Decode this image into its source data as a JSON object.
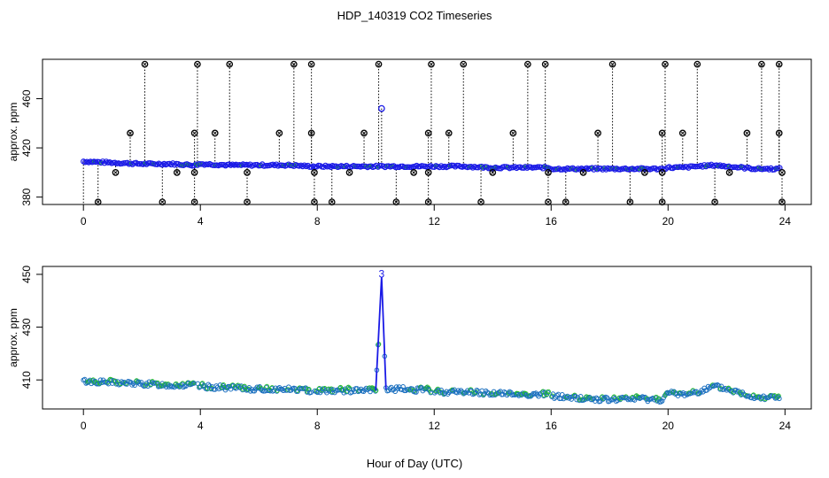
{
  "title": "HDP_140319  CO2 Timeseries",
  "xlabel": "Hour of Day (UTC)",
  "chart_data": [
    {
      "type": "scatter",
      "panel": "top",
      "ylabel": "approx. ppm",
      "xlim": [
        -1.4,
        24.9
      ],
      "ylim": [
        374,
        492
      ],
      "x_ticks": [
        0,
        4,
        8,
        12,
        16,
        20,
        24
      ],
      "y_ticks": [
        380,
        420,
        460
      ],
      "colors": {
        "flags": "#000000",
        "series": "#1a1ae6",
        "inner": "#22c022",
        "stems": "#000000"
      },
      "baseline": [
        {
          "x": 0.0,
          "y": 409
        },
        {
          "x": 1.0,
          "y": 408
        },
        {
          "x": 2.0,
          "y": 407
        },
        {
          "x": 3.0,
          "y": 407
        },
        {
          "x": 3.8,
          "y": 406
        },
        {
          "x": 4.0,
          "y": 407
        },
        {
          "x": 5.0,
          "y": 406
        },
        {
          "x": 6.0,
          "y": 406
        },
        {
          "x": 7.0,
          "y": 406
        },
        {
          "x": 7.8,
          "y": 405
        },
        {
          "x": 8.0,
          "y": 405
        },
        {
          "x": 9.0,
          "y": 405
        },
        {
          "x": 10.0,
          "y": 405
        },
        {
          "x": 11.0,
          "y": 405
        },
        {
          "x": 11.9,
          "y": 405
        },
        {
          "x": 12.0,
          "y": 405
        },
        {
          "x": 13.0,
          "y": 405
        },
        {
          "x": 14.0,
          "y": 404
        },
        {
          "x": 15.0,
          "y": 404
        },
        {
          "x": 15.9,
          "y": 404
        },
        {
          "x": 16.0,
          "y": 403
        },
        {
          "x": 17.0,
          "y": 403
        },
        {
          "x": 18.0,
          "y": 403
        },
        {
          "x": 19.0,
          "y": 403
        },
        {
          "x": 19.8,
          "y": 403
        },
        {
          "x": 20.0,
          "y": 404
        },
        {
          "x": 20.5,
          "y": 404
        },
        {
          "x": 21.0,
          "y": 405
        },
        {
          "x": 21.6,
          "y": 406
        },
        {
          "x": 22.0,
          "y": 405
        },
        {
          "x": 23.0,
          "y": 403
        },
        {
          "x": 23.8,
          "y": 403
        }
      ],
      "outlier": {
        "x": 10.2,
        "y": 452
      },
      "flags_high": [
        2.1,
        3.9,
        5.0,
        7.2,
        7.8,
        10.1,
        11.9,
        13.0,
        15.2,
        15.8,
        18.1,
        19.9,
        21.0,
        23.2,
        23.8
      ],
      "flags_high_y": 488,
      "flags_mid": [
        1.6,
        3.8,
        4.5,
        6.7,
        7.8,
        9.6,
        11.8,
        12.5,
        14.7,
        17.6,
        19.8,
        20.5,
        22.7,
        23.8
      ],
      "flags_mid_y": 432,
      "flags_low": [
        1.1,
        3.2,
        3.8,
        5.6,
        7.9,
        9.1,
        11.3,
        11.8,
        14.0,
        15.9,
        17.1,
        19.2,
        19.8,
        22.1,
        23.9
      ],
      "flags_low_y": 400,
      "flags_bottom": [
        0.5,
        2.7,
        3.8,
        5.6,
        7.9,
        8.5,
        10.7,
        11.8,
        13.6,
        15.9,
        16.5,
        18.7,
        19.8,
        21.6,
        23.9
      ],
      "flags_bottom_y": 376
    },
    {
      "type": "line",
      "panel": "bottom",
      "ylabel": "approx. ppm",
      "xlim": [
        -1.4,
        24.9
      ],
      "ylim": [
        399,
        453
      ],
      "x_ticks": [
        0,
        4,
        8,
        12,
        16,
        20,
        24
      ],
      "y_ticks": [
        410,
        430,
        450
      ],
      "colors": {
        "line": "#1a1ae6",
        "points": "#1a6fbf",
        "inner": "#22c022"
      },
      "series": [
        {
          "x": 0.0,
          "y": 409.5
        },
        {
          "x": 1.0,
          "y": 409.0
        },
        {
          "x": 2.0,
          "y": 408.5
        },
        {
          "x": 3.0,
          "y": 408.0
        },
        {
          "x": 3.8,
          "y": 408.0
        },
        {
          "x": 4.0,
          "y": 407.5
        },
        {
          "x": 5.0,
          "y": 407.0
        },
        {
          "x": 6.0,
          "y": 406.5
        },
        {
          "x": 7.0,
          "y": 406.5
        },
        {
          "x": 7.8,
          "y": 406.0
        },
        {
          "x": 8.0,
          "y": 406.0
        },
        {
          "x": 9.0,
          "y": 406.0
        },
        {
          "x": 10.0,
          "y": 406.0
        },
        {
          "x": 10.2,
          "y": 449.0
        },
        {
          "x": 10.35,
          "y": 406.5
        },
        {
          "x": 11.0,
          "y": 406.5
        },
        {
          "x": 11.9,
          "y": 406.0
        },
        {
          "x": 12.0,
          "y": 405.5
        },
        {
          "x": 13.0,
          "y": 405.5
        },
        {
          "x": 14.0,
          "y": 405.0
        },
        {
          "x": 15.0,
          "y": 404.5
        },
        {
          "x": 15.9,
          "y": 404.5
        },
        {
          "x": 16.0,
          "y": 404.0
        },
        {
          "x": 17.0,
          "y": 403.0
        },
        {
          "x": 18.0,
          "y": 402.5
        },
        {
          "x": 19.0,
          "y": 403.0
        },
        {
          "x": 19.8,
          "y": 402.5
        },
        {
          "x": 20.0,
          "y": 405.0
        },
        {
          "x": 20.5,
          "y": 404.5
        },
        {
          "x": 21.0,
          "y": 405.5
        },
        {
          "x": 21.6,
          "y": 407.5
        },
        {
          "x": 22.0,
          "y": 406.5
        },
        {
          "x": 23.0,
          "y": 403.5
        },
        {
          "x": 23.8,
          "y": 403.5
        }
      ],
      "annotation": {
        "text": "3",
        "x": 10.2,
        "y": 450.5
      }
    }
  ]
}
